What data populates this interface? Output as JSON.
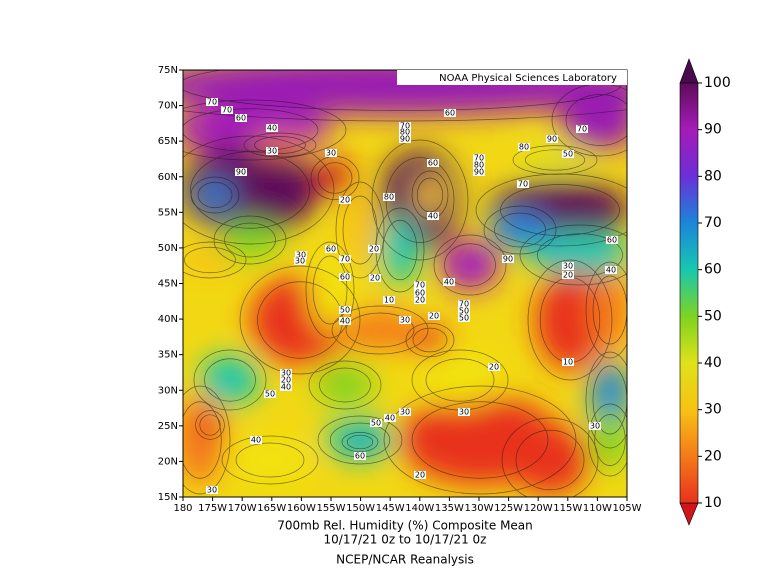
{
  "map": {
    "logo": "NOAA Physical Sciences Laboratory",
    "lat_labels": [
      "75N",
      "70N",
      "65N",
      "60N",
      "55N",
      "50N",
      "45N",
      "40N",
      "35N",
      "30N",
      "25N",
      "20N",
      "15N"
    ],
    "lon_labels": [
      "180",
      "175W",
      "170W",
      "165W",
      "160W",
      "155W",
      "150W",
      "145W",
      "140W",
      "135W",
      "130W",
      "125W",
      "120W",
      "115W",
      "110W",
      "105W"
    ],
    "contour_labels": [
      "70",
      "70",
      "60",
      "40",
      "30",
      "90",
      "30",
      "20",
      "60",
      "70",
      "80",
      "90",
      "60",
      "70",
      "80",
      "90",
      "50",
      "70",
      "80",
      "90",
      "80",
      "60",
      "30",
      "60",
      "70",
      "60",
      "20",
      "50",
      "40",
      "70",
      "60",
      "40",
      "30",
      "20",
      "70",
      "50",
      "50",
      "90",
      "30",
      "20",
      "30",
      "20",
      "10",
      "30",
      "20",
      "40",
      "50",
      "40",
      "30",
      "50",
      "40",
      "60",
      "20",
      "30",
      "30",
      "40",
      "70",
      "20",
      "10",
      "30",
      "40",
      "20"
    ]
  },
  "colorbar": {
    "ticks": [
      10,
      20,
      30,
      40,
      50,
      60,
      70,
      80,
      90,
      100
    ],
    "colors": [
      "#e8321c",
      "#f47a1a",
      "#f7c215",
      "#dfe21a",
      "#7ed321",
      "#18c8b0",
      "#1a86d8",
      "#6a2fd8",
      "#a51cb8",
      "#5e0c5a"
    ],
    "low_color": "#d0151b",
    "high_color": "#4a0a4e"
  },
  "caption": {
    "line1": "700mb Rel. Humidity (%)   Composite Mean",
    "line2": "10/17/21 0z  to 10/17/21 0z",
    "line3": "NCEP/NCAR Reanalysis"
  }
}
